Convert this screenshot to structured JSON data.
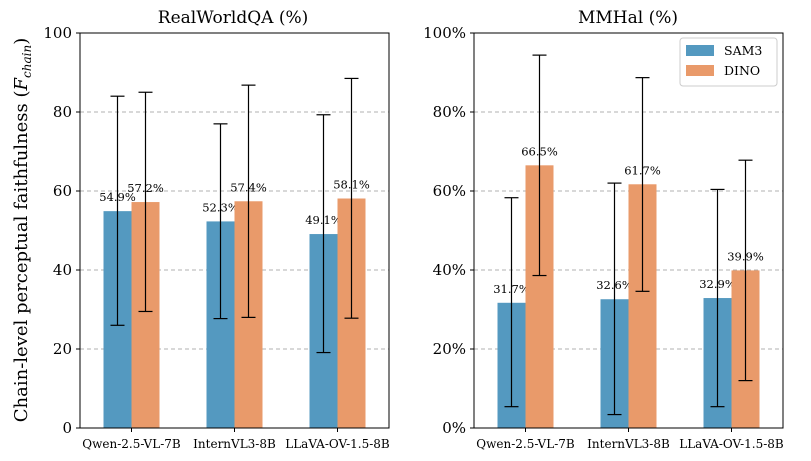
{
  "figure": {
    "ylabel_main": "Chain-level perceptual faithfulness (",
    "ylabel_sym": "F",
    "ylabel_sub": "chain",
    "ylabel_close": ")"
  },
  "colors": {
    "SAM3": "#5499c0",
    "DINO": "#e99a6a"
  },
  "chart_data": [
    {
      "type": "bar",
      "title": "RealWorldQA (%)",
      "categories": [
        "Qwen-2.5-VL-7B",
        "InternVL3-8B",
        "LLaVA-OV-1.5-8B"
      ],
      "ylim": [
        0,
        100
      ],
      "yticks": [
        0,
        20,
        40,
        60,
        80,
        100
      ],
      "ytick_labels": [
        "0",
        "20",
        "40",
        "60",
        "80",
        "100"
      ],
      "grid": true,
      "legend": false,
      "series": [
        {
          "name": "SAM3",
          "values": [
            54.9,
            52.3,
            49.1
          ],
          "labels": [
            "54.9%",
            "52.3%",
            "49.1%"
          ],
          "err_low": [
            26.0,
            27.7,
            19.1
          ],
          "err_high": [
            84.0,
            77.0,
            79.3
          ]
        },
        {
          "name": "DINO",
          "values": [
            57.2,
            57.4,
            58.1
          ],
          "labels": [
            "57.2%",
            "57.4%",
            "58.1%"
          ],
          "err_low": [
            29.5,
            28.0,
            27.8
          ],
          "err_high": [
            85.0,
            86.8,
            88.5
          ]
        }
      ]
    },
    {
      "type": "bar",
      "title": "MMHal (%)",
      "categories": [
        "Qwen-2.5-VL-7B",
        "InternVL3-8B",
        "LLaVA-OV-1.5-8B"
      ],
      "ylim": [
        0,
        100
      ],
      "yticks": [
        0,
        20,
        40,
        60,
        80,
        100
      ],
      "ytick_labels": [
        "0%",
        "20%",
        "40%",
        "60%",
        "80%",
        "100%"
      ],
      "grid": true,
      "legend": "top-right",
      "legend_labels": [
        "SAM3",
        "DINO"
      ],
      "series": [
        {
          "name": "SAM3",
          "values": [
            31.7,
            32.6,
            32.9
          ],
          "labels": [
            "31.7%",
            "32.6%",
            "32.9%"
          ],
          "err_low": [
            5.4,
            3.4,
            5.4
          ],
          "err_high": [
            58.3,
            62.0,
            60.4
          ]
        },
        {
          "name": "DINO",
          "values": [
            66.5,
            61.7,
            39.9
          ],
          "labels": [
            "66.5%",
            "61.7%",
            "39.9%"
          ],
          "err_low": [
            38.6,
            34.6,
            12.0
          ],
          "err_high": [
            94.4,
            88.7,
            67.8
          ]
        }
      ]
    }
  ]
}
